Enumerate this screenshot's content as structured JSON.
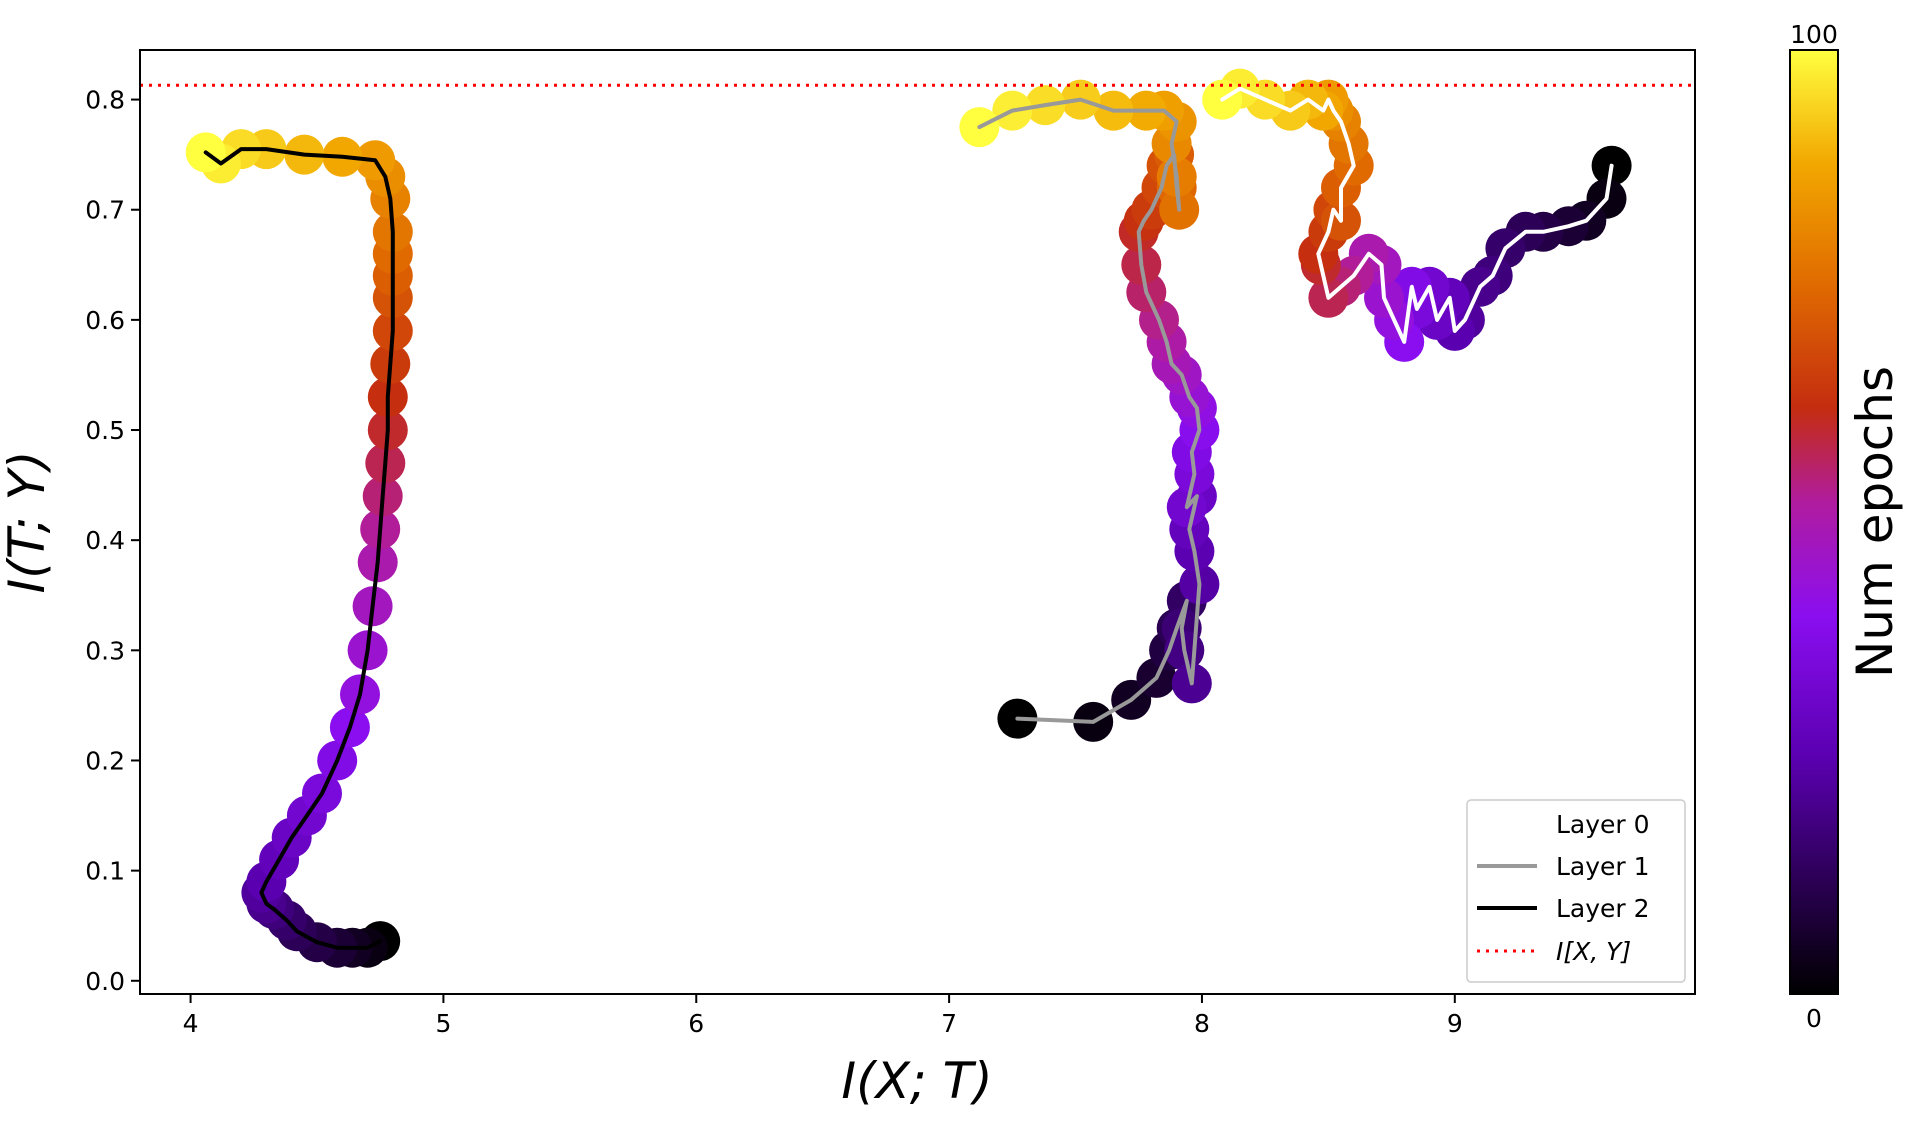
{
  "chart_data": {
    "type": "scatter",
    "xlabel": "I(X; T)",
    "ylabel": "I(T; Y)",
    "xlim": [
      3.8,
      9.95
    ],
    "ylim": [
      -0.012,
      0.845
    ],
    "x_ticks": [
      "4",
      "5",
      "6",
      "7",
      "8",
      "9"
    ],
    "y_ticks": [
      "0.0",
      "0.1",
      "0.2",
      "0.3",
      "0.4",
      "0.5",
      "0.6",
      "0.7",
      "0.8"
    ],
    "grid": false,
    "reference_line": {
      "name": "I[X, Y]",
      "y": 0.813,
      "color": "#ff0000",
      "style": "dotted"
    },
    "colorbar": {
      "label": "Num epochs",
      "min_label": "0",
      "max_label": "100",
      "colormap": "gnuplot"
    },
    "legend": {
      "placement": "bottom-right",
      "entries": [
        {
          "label": "Layer 0",
          "color": "#ffffff"
        },
        {
          "label": "Layer 1",
          "color": "#999999"
        },
        {
          "label": "Layer 2",
          "color": "#000000"
        },
        {
          "label": "I[X, Y]",
          "color": "#ff0000"
        }
      ]
    },
    "series": [
      {
        "name": "Layer 0",
        "line_color": "#ffffff",
        "x": [
          9.62,
          9.6,
          9.52,
          9.45,
          9.35,
          9.28,
          9.2,
          9.15,
          9.1,
          9.04,
          9.0,
          8.98,
          8.93,
          8.9,
          8.85,
          8.83,
          8.8,
          8.76,
          8.72,
          8.71,
          8.66,
          8.6,
          8.55,
          8.5,
          8.47,
          8.46,
          8.5,
          8.52,
          8.55,
          8.55,
          8.6,
          8.58,
          8.55,
          8.52,
          8.5,
          8.48,
          8.42,
          8.35,
          8.25,
          8.15,
          8.08
        ],
        "y": [
          0.74,
          0.71,
          0.69,
          0.685,
          0.68,
          0.68,
          0.665,
          0.64,
          0.63,
          0.6,
          0.59,
          0.62,
          0.6,
          0.63,
          0.61,
          0.63,
          0.58,
          0.6,
          0.62,
          0.65,
          0.66,
          0.64,
          0.63,
          0.62,
          0.65,
          0.66,
          0.68,
          0.7,
          0.69,
          0.72,
          0.74,
          0.76,
          0.78,
          0.79,
          0.8,
          0.79,
          0.8,
          0.79,
          0.8,
          0.81,
          0.8
        ]
      },
      {
        "name": "Layer 1",
        "line_color": "#999999",
        "x": [
          7.27,
          7.57,
          7.72,
          7.82,
          7.87,
          7.9,
          7.94,
          7.92,
          7.93,
          7.96,
          7.99,
          7.97,
          7.95,
          7.98,
          7.94,
          7.97,
          7.96,
          7.99,
          7.98,
          7.95,
          7.92,
          7.88,
          7.86,
          7.83,
          7.78,
          7.76,
          7.75,
          7.77,
          7.8,
          7.84,
          7.86,
          7.89,
          7.9,
          7.91,
          7.9,
          7.88,
          7.9,
          7.85,
          7.78,
          7.65,
          7.52,
          7.38,
          7.25,
          7.12
        ],
        "y": [
          0.238,
          0.235,
          0.255,
          0.275,
          0.3,
          0.32,
          0.345,
          0.32,
          0.3,
          0.27,
          0.36,
          0.39,
          0.41,
          0.44,
          0.43,
          0.46,
          0.48,
          0.5,
          0.52,
          0.53,
          0.55,
          0.56,
          0.58,
          0.6,
          0.625,
          0.65,
          0.68,
          0.69,
          0.7,
          0.72,
          0.74,
          0.75,
          0.72,
          0.7,
          0.73,
          0.76,
          0.78,
          0.79,
          0.79,
          0.79,
          0.8,
          0.795,
          0.79,
          0.775
        ]
      },
      {
        "name": "Layer 2",
        "line_color": "#000000",
        "x": [
          4.75,
          4.7,
          4.64,
          4.58,
          4.5,
          4.42,
          4.38,
          4.33,
          4.3,
          4.28,
          4.3,
          4.35,
          4.4,
          4.46,
          4.52,
          4.58,
          4.63,
          4.67,
          4.7,
          4.72,
          4.74,
          4.75,
          4.76,
          4.77,
          4.78,
          4.78,
          4.79,
          4.8,
          4.8,
          4.8,
          4.8,
          4.8,
          4.79,
          4.77,
          4.73,
          4.6,
          4.45,
          4.3,
          4.2,
          4.12,
          4.06
        ],
        "y": [
          0.036,
          0.03,
          0.03,
          0.03,
          0.035,
          0.045,
          0.055,
          0.065,
          0.07,
          0.08,
          0.09,
          0.11,
          0.13,
          0.15,
          0.17,
          0.2,
          0.23,
          0.26,
          0.3,
          0.34,
          0.38,
          0.41,
          0.44,
          0.47,
          0.5,
          0.53,
          0.56,
          0.59,
          0.62,
          0.64,
          0.66,
          0.68,
          0.71,
          0.73,
          0.745,
          0.748,
          0.75,
          0.755,
          0.755,
          0.742,
          0.752
        ]
      }
    ]
  }
}
